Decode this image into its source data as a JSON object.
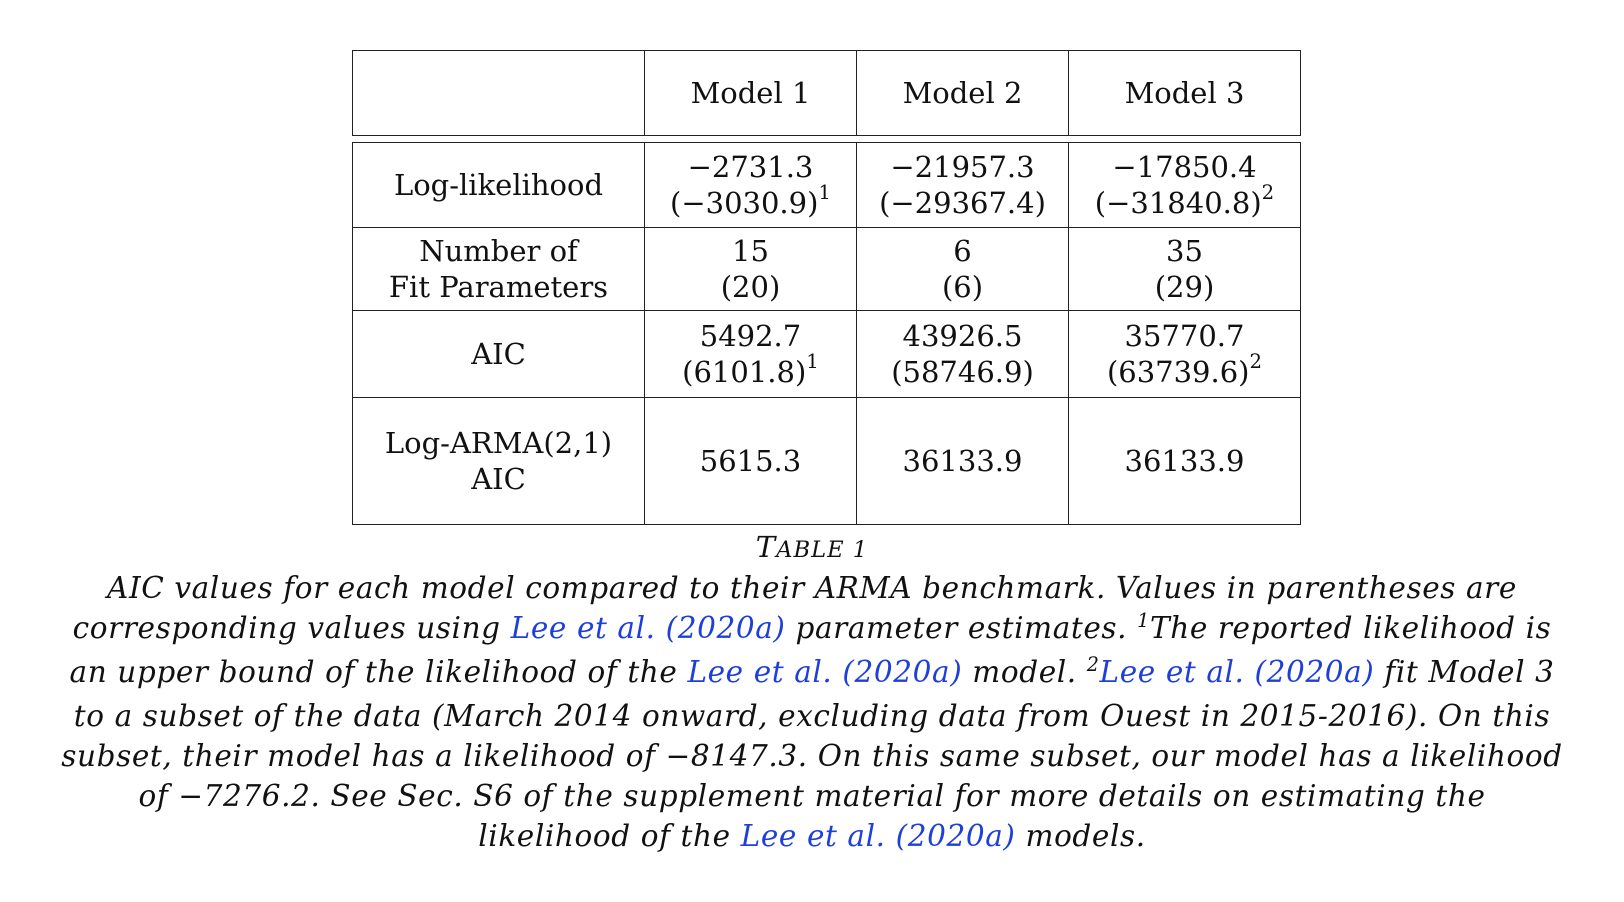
{
  "table": {
    "header": [
      "",
      "Model 1",
      "Model 2",
      "Model 3"
    ],
    "rows": [
      {
        "label": [
          "Log-likelihood"
        ],
        "cells": [
          {
            "main": "−2731.3",
            "paren": "(−3030.9)",
            "sup": "1"
          },
          {
            "main": "−21957.3",
            "paren": "(−29367.4)",
            "sup": ""
          },
          {
            "main": "−17850.4",
            "paren": "(−31840.8)",
            "sup": "2"
          }
        ]
      },
      {
        "label": [
          "Number of",
          "Fit Parameters"
        ],
        "cells": [
          {
            "main": "15",
            "paren": "(20)",
            "sup": ""
          },
          {
            "main": "6",
            "paren": "(6)",
            "sup": ""
          },
          {
            "main": "35",
            "paren": "(29)",
            "sup": ""
          }
        ]
      },
      {
        "label": [
          "AIC"
        ],
        "cells": [
          {
            "main": "5492.7",
            "paren": "(6101.8)",
            "sup": "1"
          },
          {
            "main": "43926.5",
            "paren": "(58746.9)",
            "sup": ""
          },
          {
            "main": "35770.7",
            "paren": "(63739.6)",
            "sup": "2"
          }
        ]
      },
      {
        "label": [
          "Log-ARMA(2,1)",
          "AIC"
        ],
        "cells": [
          {
            "main": "5615.3"
          },
          {
            "main": "36133.9"
          },
          {
            "main": "36133.9"
          }
        ]
      }
    ]
  },
  "caption": {
    "title_first": "T",
    "title_rest": "able 1",
    "p1": "AIC values for each model compared to their ARMA benchmark. Values in parentheses are corresponding values using ",
    "cite_author": "Lee et al.",
    "cite_year": "2020a",
    "p2": " parameter estimates. ",
    "sup1": "1",
    "p3": "The reported likelihood is an upper bound of the likelihood of the ",
    "p4": " model. ",
    "sup2": "2",
    "p5": " fit Model 3 to a subset of the data (March 2014 onward, excluding data from Ouest in 2015-2016). On this subset, their model has a likelihood of −8147.3. On this same subset, our model has a likelihood of −7276.2. See Sec. S6 of the supplement material for more details on estimating the likelihood of the ",
    "p6": " models."
  }
}
